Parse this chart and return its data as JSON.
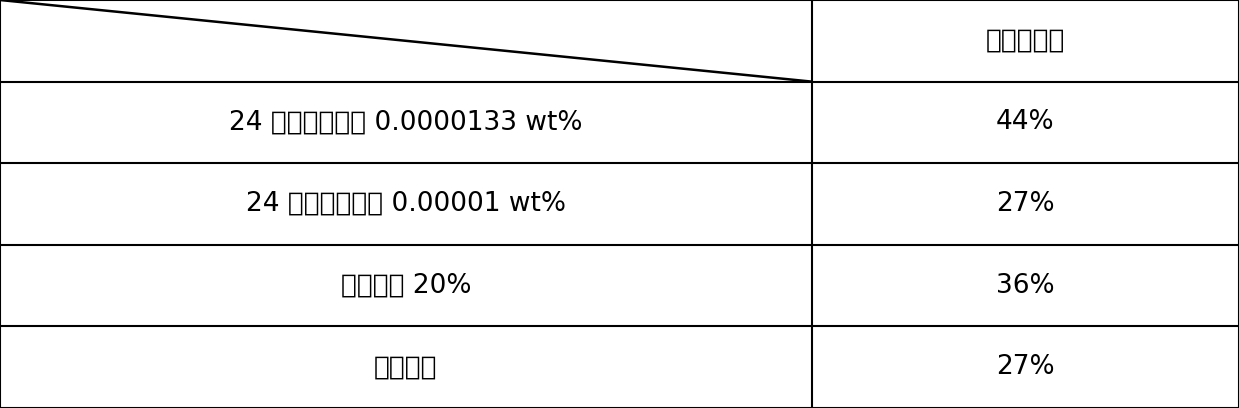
{
  "col2_header": "平均破眠率",
  "rows": [
    [
      "24 表芗莓素内酯 0.0000133 wt%",
      "44%"
    ],
    [
      "24 表芗莓素内酯 0.00001 wt%",
      "27%"
    ],
    [
      "硒酸镂馒 20%",
      "36%"
    ],
    [
      "未处理组",
      "27%"
    ]
  ],
  "col_split": 0.655,
  "background_color": "#ffffff",
  "border_color": "#000000",
  "text_color": "#000000",
  "font_size": 19,
  "header_font_size": 19,
  "fig_width": 12.39,
  "fig_height": 4.08,
  "dpi": 100
}
